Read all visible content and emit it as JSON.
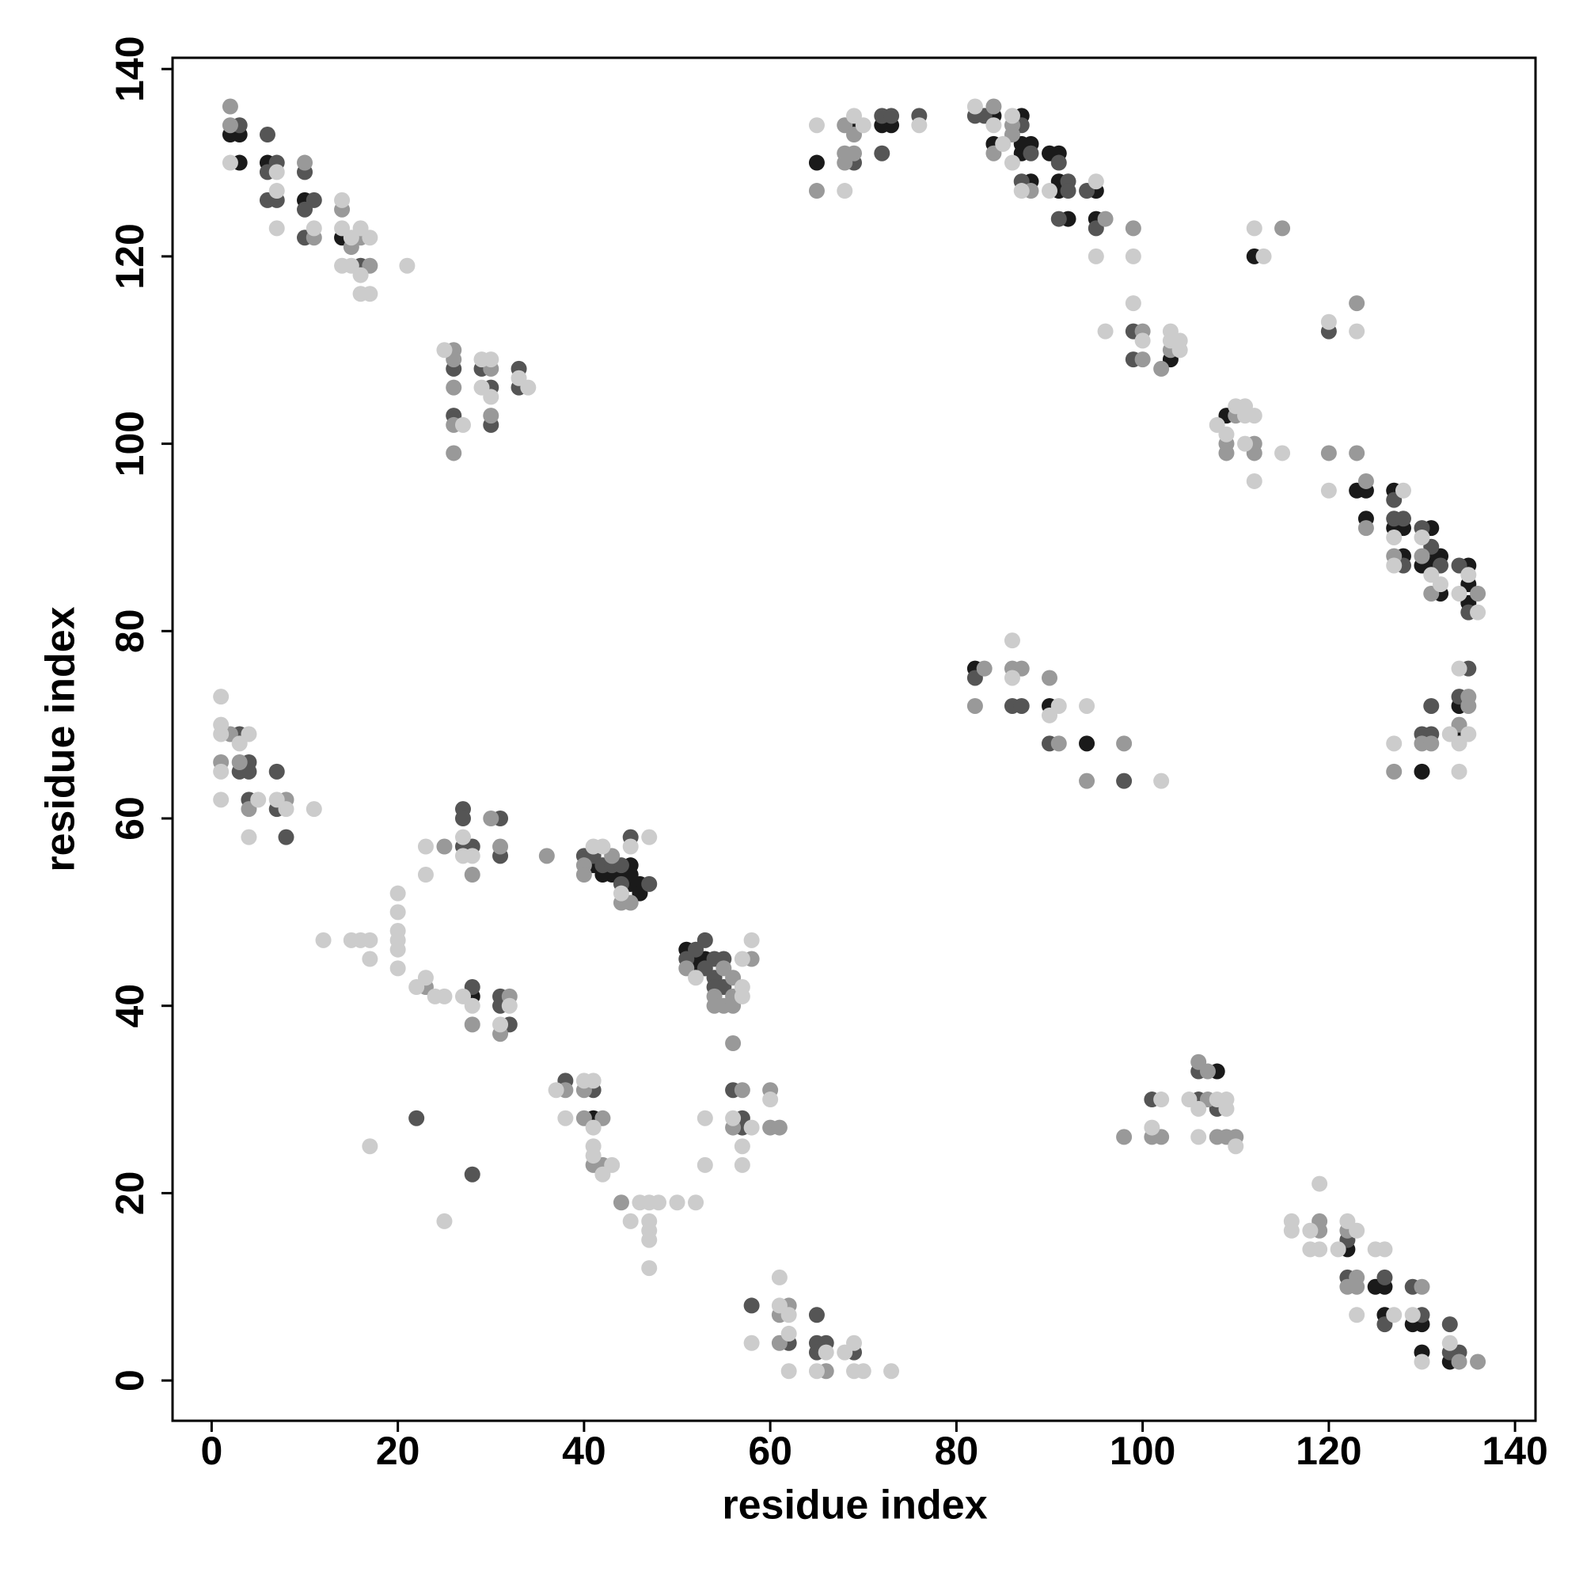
{
  "chart_data": {
    "type": "scatter",
    "xlabel": "residue index",
    "ylabel": "residue index",
    "xlim": [
      -4.2,
      142.2
    ],
    "ylim": [
      -4.3,
      141.2
    ],
    "xticks": [
      0,
      20,
      40,
      60,
      80,
      100,
      120,
      140
    ],
    "yticks": [
      0,
      20,
      40,
      60,
      80,
      100,
      120,
      140
    ],
    "series": [
      {
        "color": "#1a1a1a",
        "x": [
          2,
          3,
          3,
          6,
          10,
          14,
          28,
          41,
          42,
          43,
          44,
          45,
          45,
          45,
          46,
          46,
          51,
          52,
          52,
          53,
          41,
          65,
          69,
          72,
          73,
          84,
          84,
          87,
          87,
          87,
          88,
          88,
          90,
          91,
          91,
          91,
          92,
          95,
          95,
          103,
          109,
          112,
          123,
          124,
          124,
          127,
          127,
          128,
          128,
          131,
          130,
          131,
          131,
          132,
          132,
          135,
          135,
          135,
          82,
          90,
          94,
          130,
          134,
          134,
          108,
          122,
          125,
          126,
          126,
          129,
          130,
          130,
          133
        ],
        "values": [
          133,
          133,
          130,
          130,
          126,
          122,
          41,
          55,
          54,
          54,
          54,
          55,
          54,
          53,
          53,
          52,
          46,
          45,
          44,
          45,
          28,
          130,
          134,
          134,
          134,
          135,
          132,
          135,
          131,
          132,
          132,
          128,
          131,
          131,
          128,
          127,
          124,
          127,
          124,
          109,
          103,
          120,
          95,
          95,
          92,
          95,
          91,
          91,
          88,
          91,
          87,
          88,
          87,
          88,
          84,
          87,
          85,
          83,
          76,
          72,
          68,
          65,
          72,
          69,
          33,
          14,
          10,
          10,
          7,
          6,
          6,
          3,
          2
        ]
      },
      {
        "color": "#555555",
        "x": [
          3,
          6,
          6,
          7,
          6,
          7,
          10,
          10,
          11,
          10,
          16,
          26,
          26,
          29,
          30,
          30,
          33,
          33,
          3,
          4,
          3,
          4,
          7,
          4,
          7,
          8,
          27,
          27,
          27,
          28,
          31,
          31,
          28,
          31,
          31,
          32,
          40,
          41,
          42,
          43,
          44,
          44,
          45,
          47,
          51,
          52,
          53,
          53,
          54,
          54,
          54,
          55,
          55,
          38,
          41,
          22,
          28,
          56,
          57,
          57,
          58,
          62,
          65,
          65,
          66,
          65,
          69,
          69,
          72,
          73,
          72,
          76,
          82,
          83,
          87,
          88,
          87,
          91,
          92,
          92,
          91,
          94,
          95,
          99,
          99,
          120,
          127,
          127,
          128,
          128,
          130,
          131,
          132,
          134,
          135,
          82,
          86,
          87,
          90,
          98,
          130,
          131,
          131,
          135,
          134,
          101,
          106,
          106,
          108,
          122,
          122,
          126,
          126,
          129,
          130,
          133,
          133,
          134
        ],
        "values": [
          134,
          133,
          129,
          130,
          126,
          126,
          129,
          125,
          126,
          122,
          119,
          108,
          103,
          108,
          106,
          102,
          108,
          106,
          69,
          66,
          65,
          65,
          65,
          62,
          61,
          58,
          61,
          60,
          57,
          57,
          60,
          56,
          42,
          41,
          40,
          38,
          56,
          56,
          55,
          55,
          55,
          53,
          58,
          53,
          45,
          46,
          47,
          44,
          45,
          43,
          42,
          45,
          42,
          32,
          31,
          28,
          22,
          31,
          28,
          27,
          8,
          4,
          7,
          4,
          4,
          3,
          3,
          130,
          135,
          135,
          131,
          135,
          135,
          135,
          134,
          131,
          128,
          130,
          128,
          127,
          124,
          127,
          123,
          112,
          109,
          112,
          94,
          92,
          92,
          87,
          91,
          89,
          87,
          87,
          82,
          75,
          72,
          72,
          68,
          64,
          69,
          69,
          72,
          76,
          73,
          30,
          33,
          30,
          29,
          15,
          11,
          11,
          6,
          10,
          7,
          6,
          3,
          3
        ]
      },
      {
        "color": "#999999",
        "x": [
          2,
          2,
          10,
          11,
          14,
          15,
          16,
          17,
          26,
          26,
          26,
          26,
          26,
          30,
          30,
          2,
          1,
          3,
          8,
          4,
          25,
          28,
          30,
          31,
          23,
          28,
          32,
          31,
          36,
          40,
          40,
          43,
          44,
          45,
          51,
          54,
          54,
          55,
          55,
          56,
          56,
          56,
          58,
          56,
          38,
          40,
          40,
          42,
          41,
          42,
          44,
          57,
          56,
          60,
          60,
          61,
          62,
          61,
          61,
          66,
          65,
          68,
          68,
          68,
          69,
          69,
          84,
          84,
          86,
          86,
          88,
          96,
          99,
          100,
          100,
          102,
          103,
          109,
          109,
          110,
          112,
          112,
          115,
          123,
          120,
          123,
          124,
          124,
          127,
          130,
          131,
          136,
          83,
          82,
          86,
          87,
          90,
          91,
          94,
          98,
          127,
          130,
          131,
          135,
          135,
          134,
          98,
          101,
          102,
          106,
          107,
          107,
          108,
          109,
          110,
          119,
          119,
          122,
          123,
          122,
          123,
          130,
          134,
          136
        ],
        "values": [
          136,
          134,
          130,
          122,
          125,
          121,
          122,
          119,
          110,
          109,
          106,
          102,
          99,
          108,
          103,
          69,
          66,
          66,
          62,
          61,
          57,
          54,
          60,
          57,
          42,
          38,
          41,
          37,
          56,
          55,
          54,
          56,
          51,
          51,
          44,
          41,
          40,
          44,
          40,
          43,
          41,
          40,
          45,
          36,
          31,
          31,
          28,
          28,
          23,
          23,
          19,
          31,
          27,
          31,
          27,
          27,
          8,
          7,
          4,
          1,
          127,
          134,
          131,
          130,
          133,
          131,
          136,
          131,
          134,
          133,
          127,
          124,
          123,
          112,
          109,
          108,
          110,
          100,
          99,
          103,
          100,
          99,
          123,
          115,
          99,
          99,
          96,
          91,
          88,
          88,
          84,
          84,
          76,
          72,
          76,
          76,
          75,
          68,
          64,
          68,
          65,
          68,
          68,
          73,
          72,
          70,
          26,
          26,
          26,
          34,
          33,
          30,
          26,
          26,
          26,
          17,
          16,
          16,
          11,
          10,
          10,
          10,
          2,
          2
        ]
      },
      {
        "color": "#cccccc",
        "x": [
          2,
          7,
          7,
          7,
          11,
          14,
          14,
          15,
          16,
          17,
          14,
          15,
          16,
          16,
          17,
          21,
          25,
          27,
          29,
          30,
          29,
          30,
          33,
          34,
          1,
          1,
          1,
          4,
          3,
          1,
          1,
          5,
          7,
          8,
          4,
          11,
          12,
          15,
          16,
          17,
          17,
          20,
          20,
          20,
          20,
          20,
          20,
          23,
          23,
          27,
          27,
          28,
          22,
          23,
          24,
          25,
          27,
          28,
          32,
          31,
          41,
          42,
          44,
          45,
          47,
          52,
          57,
          57,
          57,
          58,
          37,
          38,
          40,
          41,
          41,
          41,
          41,
          42,
          43,
          45,
          46,
          47,
          48,
          47,
          47,
          47,
          47,
          50,
          52,
          17,
          25,
          53,
          53,
          56,
          57,
          57,
          58,
          60,
          58,
          61,
          61,
          62,
          62,
          62,
          66,
          65,
          68,
          69,
          69,
          70,
          73,
          65,
          68,
          69,
          70,
          76,
          82,
          84,
          85,
          86,
          86,
          87,
          90,
          95,
          95,
          99,
          96,
          99,
          100,
          103,
          103,
          104,
          104,
          108,
          109,
          110,
          111,
          111,
          111,
          112,
          112,
          115,
          112,
          113,
          120,
          123,
          120,
          128,
          127,
          127,
          130,
          131,
          132,
          134,
          135,
          136,
          86,
          86,
          91,
          90,
          94,
          102,
          127,
          133,
          134,
          135,
          134,
          134,
          102,
          101,
          105,
          106,
          108,
          109,
          109,
          106,
          110,
          116,
          116,
          118,
          119,
          118,
          119,
          121,
          122,
          123,
          123,
          125,
          126,
          127,
          129,
          130,
          133
        ],
        "values": [
          130,
          129,
          127,
          123,
          123,
          126,
          123,
          122,
          123,
          122,
          119,
          119,
          118,
          116,
          116,
          119,
          110,
          102,
          109,
          109,
          106,
          105,
          107,
          106,
          73,
          70,
          69,
          69,
          68,
          65,
          62,
          62,
          62,
          61,
          58,
          61,
          47,
          47,
          47,
          47,
          45,
          52,
          50,
          48,
          47,
          46,
          44,
          57,
          54,
          58,
          56,
          56,
          42,
          43,
          41,
          41,
          41,
          40,
          40,
          38,
          57,
          57,
          52,
          57,
          58,
          43,
          45,
          42,
          41,
          47,
          31,
          28,
          32,
          32,
          27,
          25,
          24,
          22,
          23,
          17,
          19,
          19,
          19,
          17,
          16,
          15,
          12,
          19,
          19,
          25,
          17,
          28,
          23,
          28,
          25,
          23,
          27,
          30,
          4,
          11,
          8,
          7,
          5,
          1,
          3,
          1,
          3,
          4,
          1,
          1,
          1,
          134,
          127,
          135,
          134,
          134,
          136,
          134,
          132,
          135,
          130,
          127,
          127,
          128,
          120,
          120,
          112,
          115,
          111,
          112,
          111,
          111,
          110,
          102,
          101,
          104,
          104,
          103,
          100,
          103,
          96,
          99,
          123,
          120,
          113,
          112,
          95,
          95,
          90,
          87,
          90,
          86,
          85,
          84,
          86,
          82,
          79,
          75,
          72,
          71,
          72,
          64,
          68,
          69,
          76,
          69,
          68,
          65,
          30,
          27,
          30,
          29,
          30,
          30,
          29,
          26,
          25,
          17,
          16,
          16,
          21,
          14,
          14,
          14,
          17,
          16,
          7,
          14,
          14,
          7,
          7,
          2,
          4
        ]
      }
    ]
  }
}
